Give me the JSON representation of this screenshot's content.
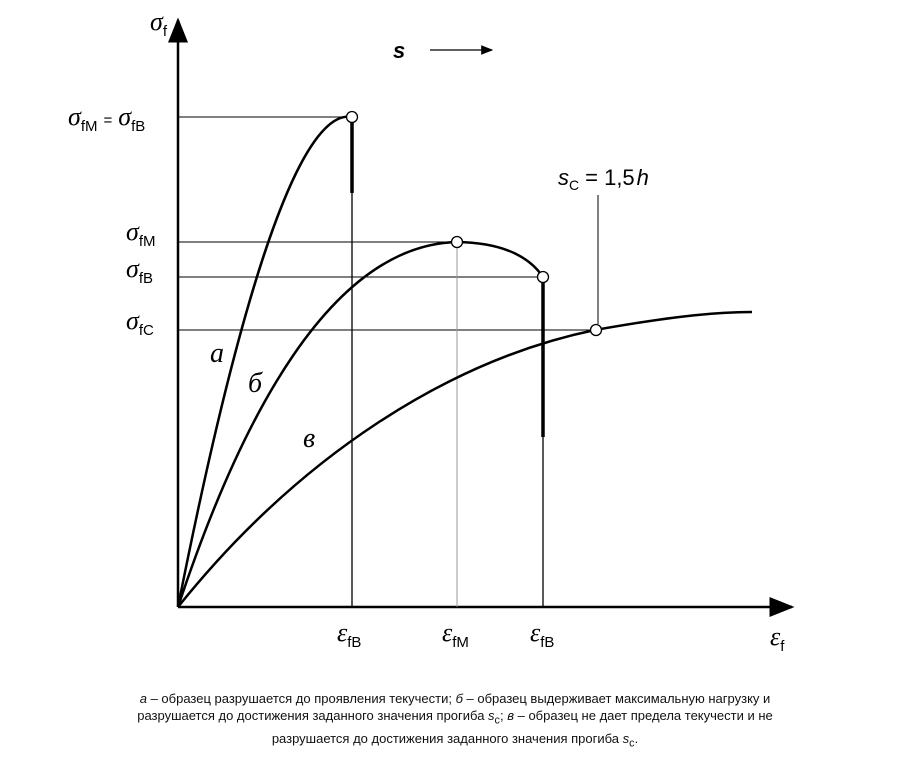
{
  "y_axis_label": {
    "symbol": "σ",
    "sub": "f"
  },
  "x_axis_label": {
    "symbol": "ε",
    "sub": "f"
  },
  "direction_label": "s",
  "stress_labels": [
    {
      "symbol": "σ",
      "sub": "fM",
      "equals": "=",
      "symbol2": "σ",
      "sub2": "fB"
    },
    {
      "symbol": "σ",
      "sub": "fM"
    },
    {
      "symbol": "σ",
      "sub": "fB"
    },
    {
      "symbol": "σ",
      "sub": "fC"
    }
  ],
  "strain_labels": [
    {
      "symbol": "ε",
      "sub": "fB"
    },
    {
      "symbol": "ε",
      "sub": "fM"
    },
    {
      "symbol": "ε",
      "sub": "fB"
    }
  ],
  "sc_label": {
    "symbol": "s",
    "sub": "C",
    "equals": "= 1,5",
    "h": "h"
  },
  "curve_labels": [
    "а",
    "б",
    "в"
  ],
  "caption": [
    "а",
    " – образец разрушается до проявления  текучести; ",
    "б",
    " – образец  выдерживает максимальную нагрузку и разрушается до достижения заданного значения прогиба ",
    "s",
    "c",
    "; ",
    "в",
    " – образец не дает предела текучести и не разрушается до достижения заданного значения прогиба ",
    "s",
    "c",
    "."
  ]
}
